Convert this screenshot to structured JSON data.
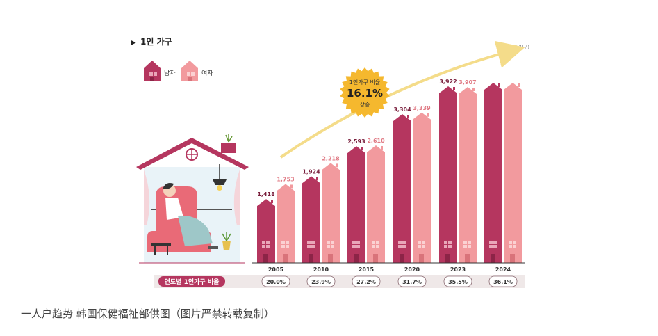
{
  "chart_data": {
    "type": "bar",
    "title": "1인 가구",
    "unit_note": "(단위: 천 가구)",
    "categories": [
      "2005",
      "2010",
      "2015",
      "2020",
      "2023",
      "2024"
    ],
    "series": [
      {
        "name": "남자",
        "values": [
          1418,
          1924,
          2593,
          3304,
          3922,
          null
        ],
        "labels": [
          "1,418",
          "1,924",
          "2,593",
          "3,304",
          "3,922",
          ""
        ]
      },
      {
        "name": "여자",
        "values": [
          1753,
          2218,
          2610,
          3339,
          3907,
          null
        ],
        "labels": [
          "1,753",
          "2,218",
          "2,610",
          "3,339",
          "3,907",
          ""
        ]
      }
    ],
    "ratio_row_label": "연도별 1인가구 비율",
    "ratios": [
      "20.0%",
      "23.9%",
      "27.2%",
      "31.7%",
      "35.5%",
      "36.1%"
    ],
    "badge": {
      "line1": "1인가구 비율",
      "value": "16.1%",
      "line3": "상승"
    },
    "colors": {
      "male": "#b5365f",
      "female": "#f29a9e",
      "badge": "#f5b82e",
      "arrow": "#f4dc8a",
      "ratio_bg": "#efe8e8",
      "ratio_label_bg": "#b5365f"
    }
  },
  "caption": "一人户趋势 韩国保健福祉部供图（图片严禁转载复制）"
}
